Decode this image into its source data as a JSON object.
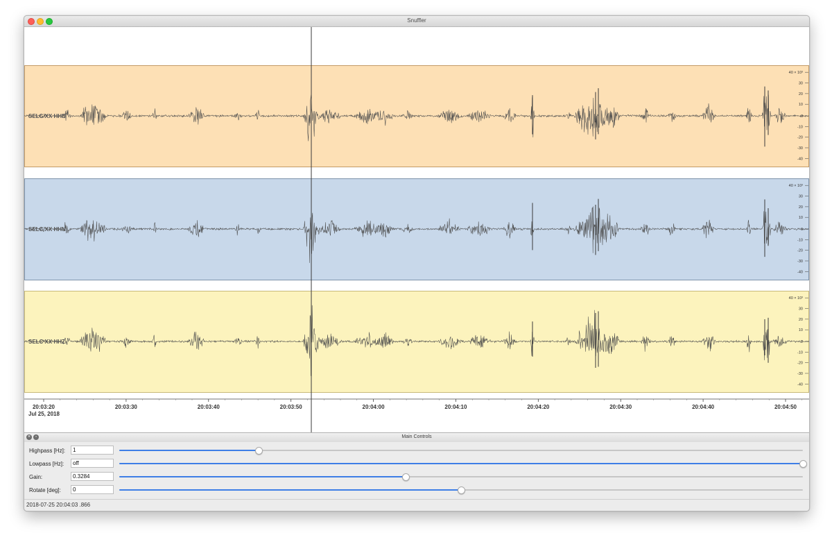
{
  "window": {
    "title": "Snuffler"
  },
  "traces": [
    {
      "label": "SELC XX HHE",
      "color": "#fde0b5",
      "border": "#c39b67"
    },
    {
      "label": "SELC XX HHN",
      "color": "#c8d8ea",
      "border": "#7d93ab"
    },
    {
      "label": "SELC XX HHZ",
      "color": "#fcf3bd",
      "border": "#c8b979"
    }
  ],
  "amplitude_axis": {
    "unit_label": "40 × 10³",
    "ticks": [
      "30",
      "20",
      "10",
      "0",
      "-10",
      "-20",
      "-30",
      "-40"
    ]
  },
  "time_axis": {
    "ticks": [
      "20:03:20",
      "20:03:30",
      "20:03:40",
      "20:03:50",
      "20:04:00",
      "20:04:10",
      "20:04:20",
      "20:04:30",
      "20:04:40",
      "20:04:50"
    ],
    "date": "Jul 25, 2018"
  },
  "controls_panel": {
    "title": "Main Controls",
    "rows": [
      {
        "label": "Highpass [Hz]:",
        "value": "1",
        "level": 0.204
      },
      {
        "label": "Lowpass [Hz]:",
        "value": "off",
        "level": 1.0
      },
      {
        "label": "Gain:",
        "value": "0.3284",
        "level": 0.419
      },
      {
        "label": "Rotate [deg]:",
        "value": "0",
        "level": 0.5
      }
    ]
  },
  "status": {
    "text": "2018-07-25 20:04:03 .866"
  },
  "colors": {
    "slider_active": "#3d7ee6",
    "waveform": "#4d4d4d"
  }
}
